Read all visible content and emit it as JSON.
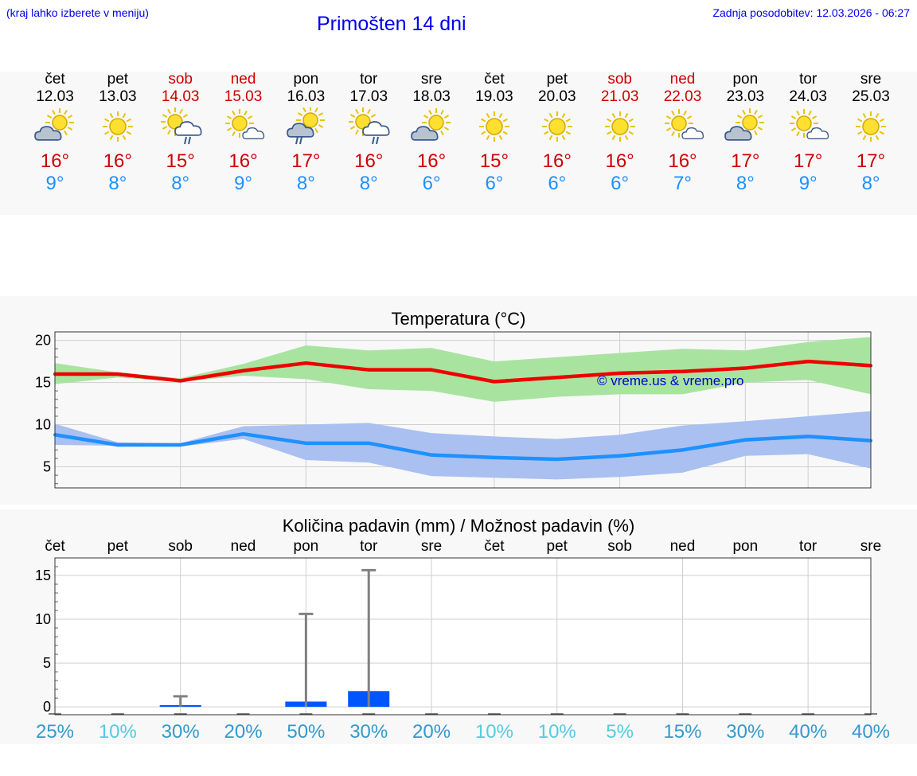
{
  "header": {
    "hint": "(kraj lahko izberete v meniju)",
    "title": "Primošten 14 dni",
    "updated": "Zadnja posodobitev: 12.03.2026 - 06:27"
  },
  "days": [
    {
      "name": "čet",
      "date": "12.03",
      "weekend": false,
      "icon": "partly-cloudy-icon",
      "max": "16°",
      "min": "9°"
    },
    {
      "name": "pet",
      "date": "13.03",
      "weekend": false,
      "icon": "sunny-icon",
      "max": "16°",
      "min": "8°"
    },
    {
      "name": "sob",
      "date": "14.03",
      "weekend": true,
      "icon": "sun-cloud-rain-icon",
      "max": "15°",
      "min": "8°"
    },
    {
      "name": "ned",
      "date": "15.03",
      "weekend": true,
      "icon": "sun-small-cloud-icon",
      "max": "16°",
      "min": "9°"
    },
    {
      "name": "pon",
      "date": "16.03",
      "weekend": false,
      "icon": "cloud-rain-sun-icon",
      "max": "17°",
      "min": "8°"
    },
    {
      "name": "tor",
      "date": "17.03",
      "weekend": false,
      "icon": "sun-cloud-rain-icon",
      "max": "16°",
      "min": "8°"
    },
    {
      "name": "sre",
      "date": "18.03",
      "weekend": false,
      "icon": "partly-cloudy-icon",
      "max": "16°",
      "min": "6°"
    },
    {
      "name": "čet",
      "date": "19.03",
      "weekend": false,
      "icon": "sunny-icon",
      "max": "15°",
      "min": "6°"
    },
    {
      "name": "pet",
      "date": "20.03",
      "weekend": false,
      "icon": "sunny-icon",
      "max": "16°",
      "min": "6°"
    },
    {
      "name": "sob",
      "date": "21.03",
      "weekend": true,
      "icon": "sunny-icon",
      "max": "16°",
      "min": "6°"
    },
    {
      "name": "ned",
      "date": "22.03",
      "weekend": true,
      "icon": "sun-small-cloud-icon",
      "max": "16°",
      "min": "7°"
    },
    {
      "name": "pon",
      "date": "23.03",
      "weekend": false,
      "icon": "partly-cloudy-icon",
      "max": "17°",
      "min": "8°"
    },
    {
      "name": "tor",
      "date": "24.03",
      "weekend": false,
      "icon": "sun-small-cloud-icon",
      "max": "17°",
      "min": "9°"
    },
    {
      "name": "sre",
      "date": "25.03",
      "weekend": false,
      "icon": "sunny-icon",
      "max": "17°",
      "min": "8°"
    }
  ],
  "colors": {
    "weekend": "#cc0000",
    "max_line": "#ee0000",
    "min_line": "#1e90ff",
    "max_band": "#a8e4a0",
    "min_band": "#a9c0f0",
    "precip_bar": "#0055ff",
    "watermark": "#0000cc"
  },
  "chart_data": [
    {
      "type": "line",
      "title": "Temperatura (°C)",
      "ylim": [
        2.5,
        21
      ],
      "yticks": [
        5,
        10,
        15,
        20
      ],
      "x": [
        0,
        1,
        2,
        3,
        4,
        5,
        6,
        7,
        8,
        9,
        10,
        11,
        12,
        13
      ],
      "watermark": "© vreme.us & vreme.pro",
      "series": [
        {
          "name": "max",
          "values": [
            16.0,
            16.0,
            15.2,
            16.4,
            17.3,
            16.5,
            16.5,
            15.1,
            15.6,
            16.1,
            16.3,
            16.7,
            17.5,
            17.0
          ],
          "band_low": [
            14.8,
            15.6,
            15.1,
            15.8,
            15.4,
            14.2,
            14.0,
            12.7,
            13.3,
            13.6,
            13.6,
            15.0,
            15.3,
            13.6
          ],
          "band_high": [
            17.3,
            16.2,
            15.5,
            17.2,
            19.4,
            18.8,
            19.1,
            17.5,
            18.0,
            18.5,
            19.0,
            18.8,
            19.8,
            20.4
          ]
        },
        {
          "name": "min",
          "values": [
            8.8,
            7.6,
            7.6,
            8.9,
            7.8,
            7.8,
            6.4,
            6.1,
            5.9,
            6.3,
            7.0,
            8.2,
            8.6,
            8.1
          ],
          "band_low": [
            7.6,
            7.5,
            7.4,
            8.3,
            5.8,
            5.5,
            3.9,
            3.7,
            3.5,
            3.8,
            4.3,
            6.3,
            6.5,
            4.8
          ],
          "band_high": [
            10.1,
            7.9,
            7.8,
            9.8,
            10.0,
            10.2,
            9.0,
            8.6,
            8.3,
            8.8,
            9.9,
            10.4,
            11.0,
            11.6
          ]
        }
      ]
    },
    {
      "type": "bar",
      "title": "Količina padavin (mm) / Možnost padavin (%)",
      "ylim": [
        -0.9,
        17
      ],
      "yticks": [
        0,
        5,
        10,
        15
      ],
      "categories": [
        "čet",
        "pet",
        "sob",
        "ned",
        "pon",
        "tor",
        "sre",
        "čet",
        "pet",
        "sob",
        "ned",
        "pon",
        "tor",
        "sre"
      ],
      "values": [
        0,
        0,
        0.2,
        0,
        0.6,
        1.8,
        0,
        0,
        0,
        0,
        0,
        0,
        0,
        0
      ],
      "max_values": [
        0,
        0,
        1.2,
        0,
        10.6,
        15.6,
        0,
        0,
        0,
        0,
        0,
        0,
        0,
        0
      ],
      "probability": [
        "25%",
        "10%",
        "30%",
        "20%",
        "50%",
        "30%",
        "20%",
        "10%",
        "10%",
        "5%",
        "15%",
        "30%",
        "40%",
        "40%"
      ],
      "probability_colors": [
        "#3399cc",
        "#55ccdd",
        "#3399cc",
        "#3399cc",
        "#3399cc",
        "#3399cc",
        "#3399cc",
        "#55ccdd",
        "#55ccdd",
        "#55ccdd",
        "#3399cc",
        "#3399cc",
        "#3399cc",
        "#3399cc"
      ]
    }
  ]
}
